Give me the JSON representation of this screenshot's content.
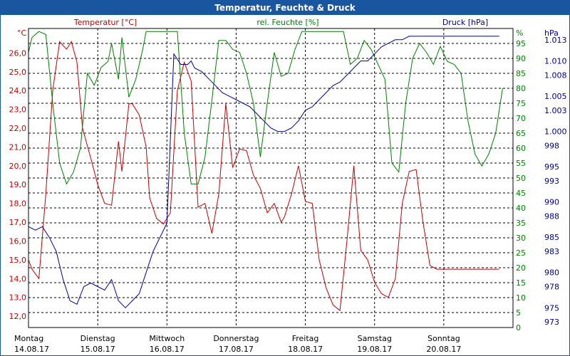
{
  "window": {
    "title": "Temperatur, Feuchte & Druck"
  },
  "colors": {
    "temperature": "#c00000",
    "humidity": "#008000",
    "pressure": "#00008b",
    "title_bar": "#1a56a0"
  },
  "chart_data": {
    "type": "line",
    "title": "Temperatur, Feuchte & Druck",
    "grid": true,
    "x_axis": {
      "range": [
        0,
        7
      ],
      "ticks": [
        {
          "pos": 0,
          "day": "Montag",
          "date": "14.08.17"
        },
        {
          "pos": 1,
          "day": "Dienstag",
          "date": "15.08.17"
        },
        {
          "pos": 2,
          "day": "Mittwoch",
          "date": "16.08.17"
        },
        {
          "pos": 3,
          "day": "Donnerstag",
          "date": "17.08.17"
        },
        {
          "pos": 4,
          "day": "Freitag",
          "date": "18.08.17"
        },
        {
          "pos": 5,
          "day": "Samstag",
          "date": "19.08.17"
        },
        {
          "pos": 6,
          "day": "Sonntag",
          "date": "20.08.17"
        }
      ]
    },
    "axes": {
      "temperature": {
        "label": "Temperatur [°C]",
        "unit": "°C",
        "range": [
          11.4,
          27.3
        ],
        "ticks": [
          "12,0",
          "13,0",
          "14,0",
          "15,0",
          "16,0",
          "17,0",
          "18,0",
          "19,0",
          "20,0",
          "21,0",
          "22,0",
          "23,0",
          "24,0",
          "25,0",
          "26,0"
        ]
      },
      "humidity": {
        "label": "rel. Feuchte [%]",
        "unit": "%",
        "range": [
          0,
          100
        ],
        "ticks": [
          "0",
          "5",
          "10",
          "15",
          "20",
          "25",
          "30",
          "35",
          "40",
          "45",
          "50",
          "55",
          "60",
          "65",
          "70",
          "75",
          "80",
          "85",
          "90",
          "95"
        ]
      },
      "pressure": {
        "label": "Druck [hPa]",
        "unit": "hPa",
        "range": [
          972.2,
          1014.6
        ],
        "ticks": [
          "973",
          "975",
          "978",
          "980",
          "983",
          "985",
          "988",
          "990",
          "993",
          "995",
          "998",
          "1.000",
          "1.003",
          "1.005",
          "1.008",
          "1.010",
          "1.013"
        ]
      }
    },
    "series": [
      {
        "name": "Temperatur [°C]",
        "axis": "temperature",
        "color": "#c00000",
        "x": [
          0,
          0.05,
          0.15,
          0.25,
          0.35,
          0.45,
          0.55,
          0.62,
          0.7,
          0.78,
          0.9,
          1.0,
          1.1,
          1.2,
          1.3,
          1.35,
          1.45,
          1.5,
          1.6,
          1.7,
          1.75,
          1.85,
          1.95,
          2.05,
          2.15,
          2.25,
          2.35,
          2.45,
          2.55,
          2.65,
          2.75,
          2.85,
          2.95,
          3.05,
          3.15,
          3.25,
          3.35,
          3.45,
          3.55,
          3.65,
          3.7,
          3.8,
          3.9,
          4.0,
          4.1,
          4.2,
          4.3,
          4.4,
          4.5,
          4.6,
          4.7,
          4.8,
          4.9,
          5.0,
          5.1,
          5.2,
          5.3,
          5.4,
          5.5,
          5.6,
          5.7,
          5.8,
          5.9,
          6.0,
          6.1,
          6.2,
          6.3,
          6.4,
          6.5,
          6.6,
          6.7,
          6.8
        ],
        "values": [
          15.0,
          14.5,
          14.0,
          18.5,
          24.0,
          26.6,
          26.2,
          26.6,
          25.5,
          22.0,
          20.4,
          19.0,
          18.0,
          17.9,
          21.3,
          19.7,
          23.3,
          23.3,
          22.7,
          21.0,
          18.3,
          17.2,
          16.9,
          17.5,
          24.0,
          25.5,
          24.5,
          17.8,
          18.0,
          16.4,
          18.5,
          23.3,
          19.9,
          20.9,
          20.8,
          19.5,
          18.8,
          17.5,
          18.0,
          17.0,
          17.3,
          18.5,
          20.0,
          18.1,
          18.0,
          15.0,
          13.5,
          12.6,
          12.3,
          16.0,
          20.0,
          15.5,
          15.0,
          13.8,
          13.2,
          13.0,
          14.0,
          18.0,
          19.7,
          19.8,
          17.0,
          14.7,
          14.5,
          14.5,
          14.5,
          14.5,
          14.5,
          14.5,
          14.5,
          14.5,
          14.5,
          14.5
        ]
      },
      {
        "name": "rel. Feuchte [%]",
        "axis": "humidity",
        "color": "#008000",
        "x": [
          0,
          0.05,
          0.15,
          0.25,
          0.35,
          0.45,
          0.55,
          0.65,
          0.75,
          0.85,
          0.95,
          1.05,
          1.15,
          1.2,
          1.3,
          1.35,
          1.45,
          1.55,
          1.65,
          1.7,
          1.8,
          1.9,
          2.0,
          2.05,
          2.15,
          2.25,
          2.35,
          2.45,
          2.55,
          2.65,
          2.75,
          2.85,
          2.95,
          3.05,
          3.15,
          3.25,
          3.35,
          3.45,
          3.55,
          3.65,
          3.75,
          3.85,
          3.95,
          4.05,
          4.15,
          4.25,
          4.35,
          4.45,
          4.55,
          4.65,
          4.75,
          4.85,
          4.95,
          5.05,
          5.15,
          5.25,
          5.35,
          5.45,
          5.55,
          5.65,
          5.75,
          5.85,
          5.95,
          6.05,
          6.15,
          6.25,
          6.35,
          6.45,
          6.55,
          6.65,
          6.75,
          6.85
        ],
        "values": [
          92,
          97,
          99,
          98,
          75,
          55,
          48,
          52,
          60,
          85,
          81,
          87,
          89,
          95,
          83,
          97,
          77,
          83,
          93,
          99,
          99,
          99,
          99,
          99,
          99,
          65,
          48,
          48,
          57,
          76,
          96,
          96,
          93,
          92,
          85,
          75,
          57,
          75,
          92,
          84,
          85,
          93,
          99,
          99,
          99,
          99,
          99,
          99,
          99,
          88,
          90,
          96,
          93,
          88,
          83,
          55,
          52,
          75,
          90,
          95,
          92,
          88,
          94,
          89,
          88,
          85,
          69,
          58,
          54,
          58,
          65,
          80
        ]
      },
      {
        "name": "Druck [hPa]",
        "axis": "pressure",
        "color": "#00008b",
        "x": [
          0,
          0.1,
          0.2,
          0.3,
          0.4,
          0.5,
          0.6,
          0.7,
          0.8,
          0.9,
          1.0,
          1.1,
          1.2,
          1.3,
          1.4,
          1.5,
          1.6,
          1.7,
          1.8,
          1.9,
          2.0,
          2.1,
          2.2,
          2.3,
          2.35,
          2.4,
          2.5,
          2.6,
          2.7,
          2.8,
          2.9,
          3.0,
          3.1,
          3.2,
          3.3,
          3.4,
          3.5,
          3.6,
          3.7,
          3.8,
          3.9,
          4.0,
          4.1,
          4.2,
          4.3,
          4.4,
          4.5,
          4.6,
          4.7,
          4.8,
          4.9,
          5.0,
          5.1,
          5.2,
          5.3,
          5.4,
          5.5,
          5.6,
          5.7,
          5.8,
          5.9,
          6.0,
          6.1,
          6.2,
          6.3,
          6.4,
          6.5,
          6.6,
          6.7,
          6.8
        ],
        "values": [
          986.5,
          986.0,
          986.5,
          985.0,
          983.0,
          979.0,
          976.0,
          975.5,
          978.0,
          978.5,
          978.0,
          977.5,
          979.0,
          976.0,
          975.0,
          976.0,
          977.0,
          980.0,
          983.0,
          985.0,
          987.0,
          1011.0,
          1009.5,
          1009.5,
          1010.0,
          1009.0,
          1008.5,
          1007.5,
          1006.5,
          1005.5,
          1005.0,
          1004.5,
          1004.0,
          1003.5,
          1002.5,
          1001.5,
          1000.5,
          1000.0,
          1000.0,
          1000.5,
          1001.5,
          1003.0,
          1003.5,
          1004.5,
          1005.5,
          1006.5,
          1007.0,
          1008.0,
          1009.0,
          1010.0,
          1010.0,
          1011.0,
          1012.0,
          1012.5,
          1013.0,
          1013.0,
          1013.5,
          1013.5,
          1013.5,
          1013.5,
          1013.5,
          1013.5,
          1013.5,
          1013.5,
          1013.5,
          1013.5,
          1013.5,
          1013.5,
          1013.5,
          1013.5
        ]
      }
    ]
  }
}
